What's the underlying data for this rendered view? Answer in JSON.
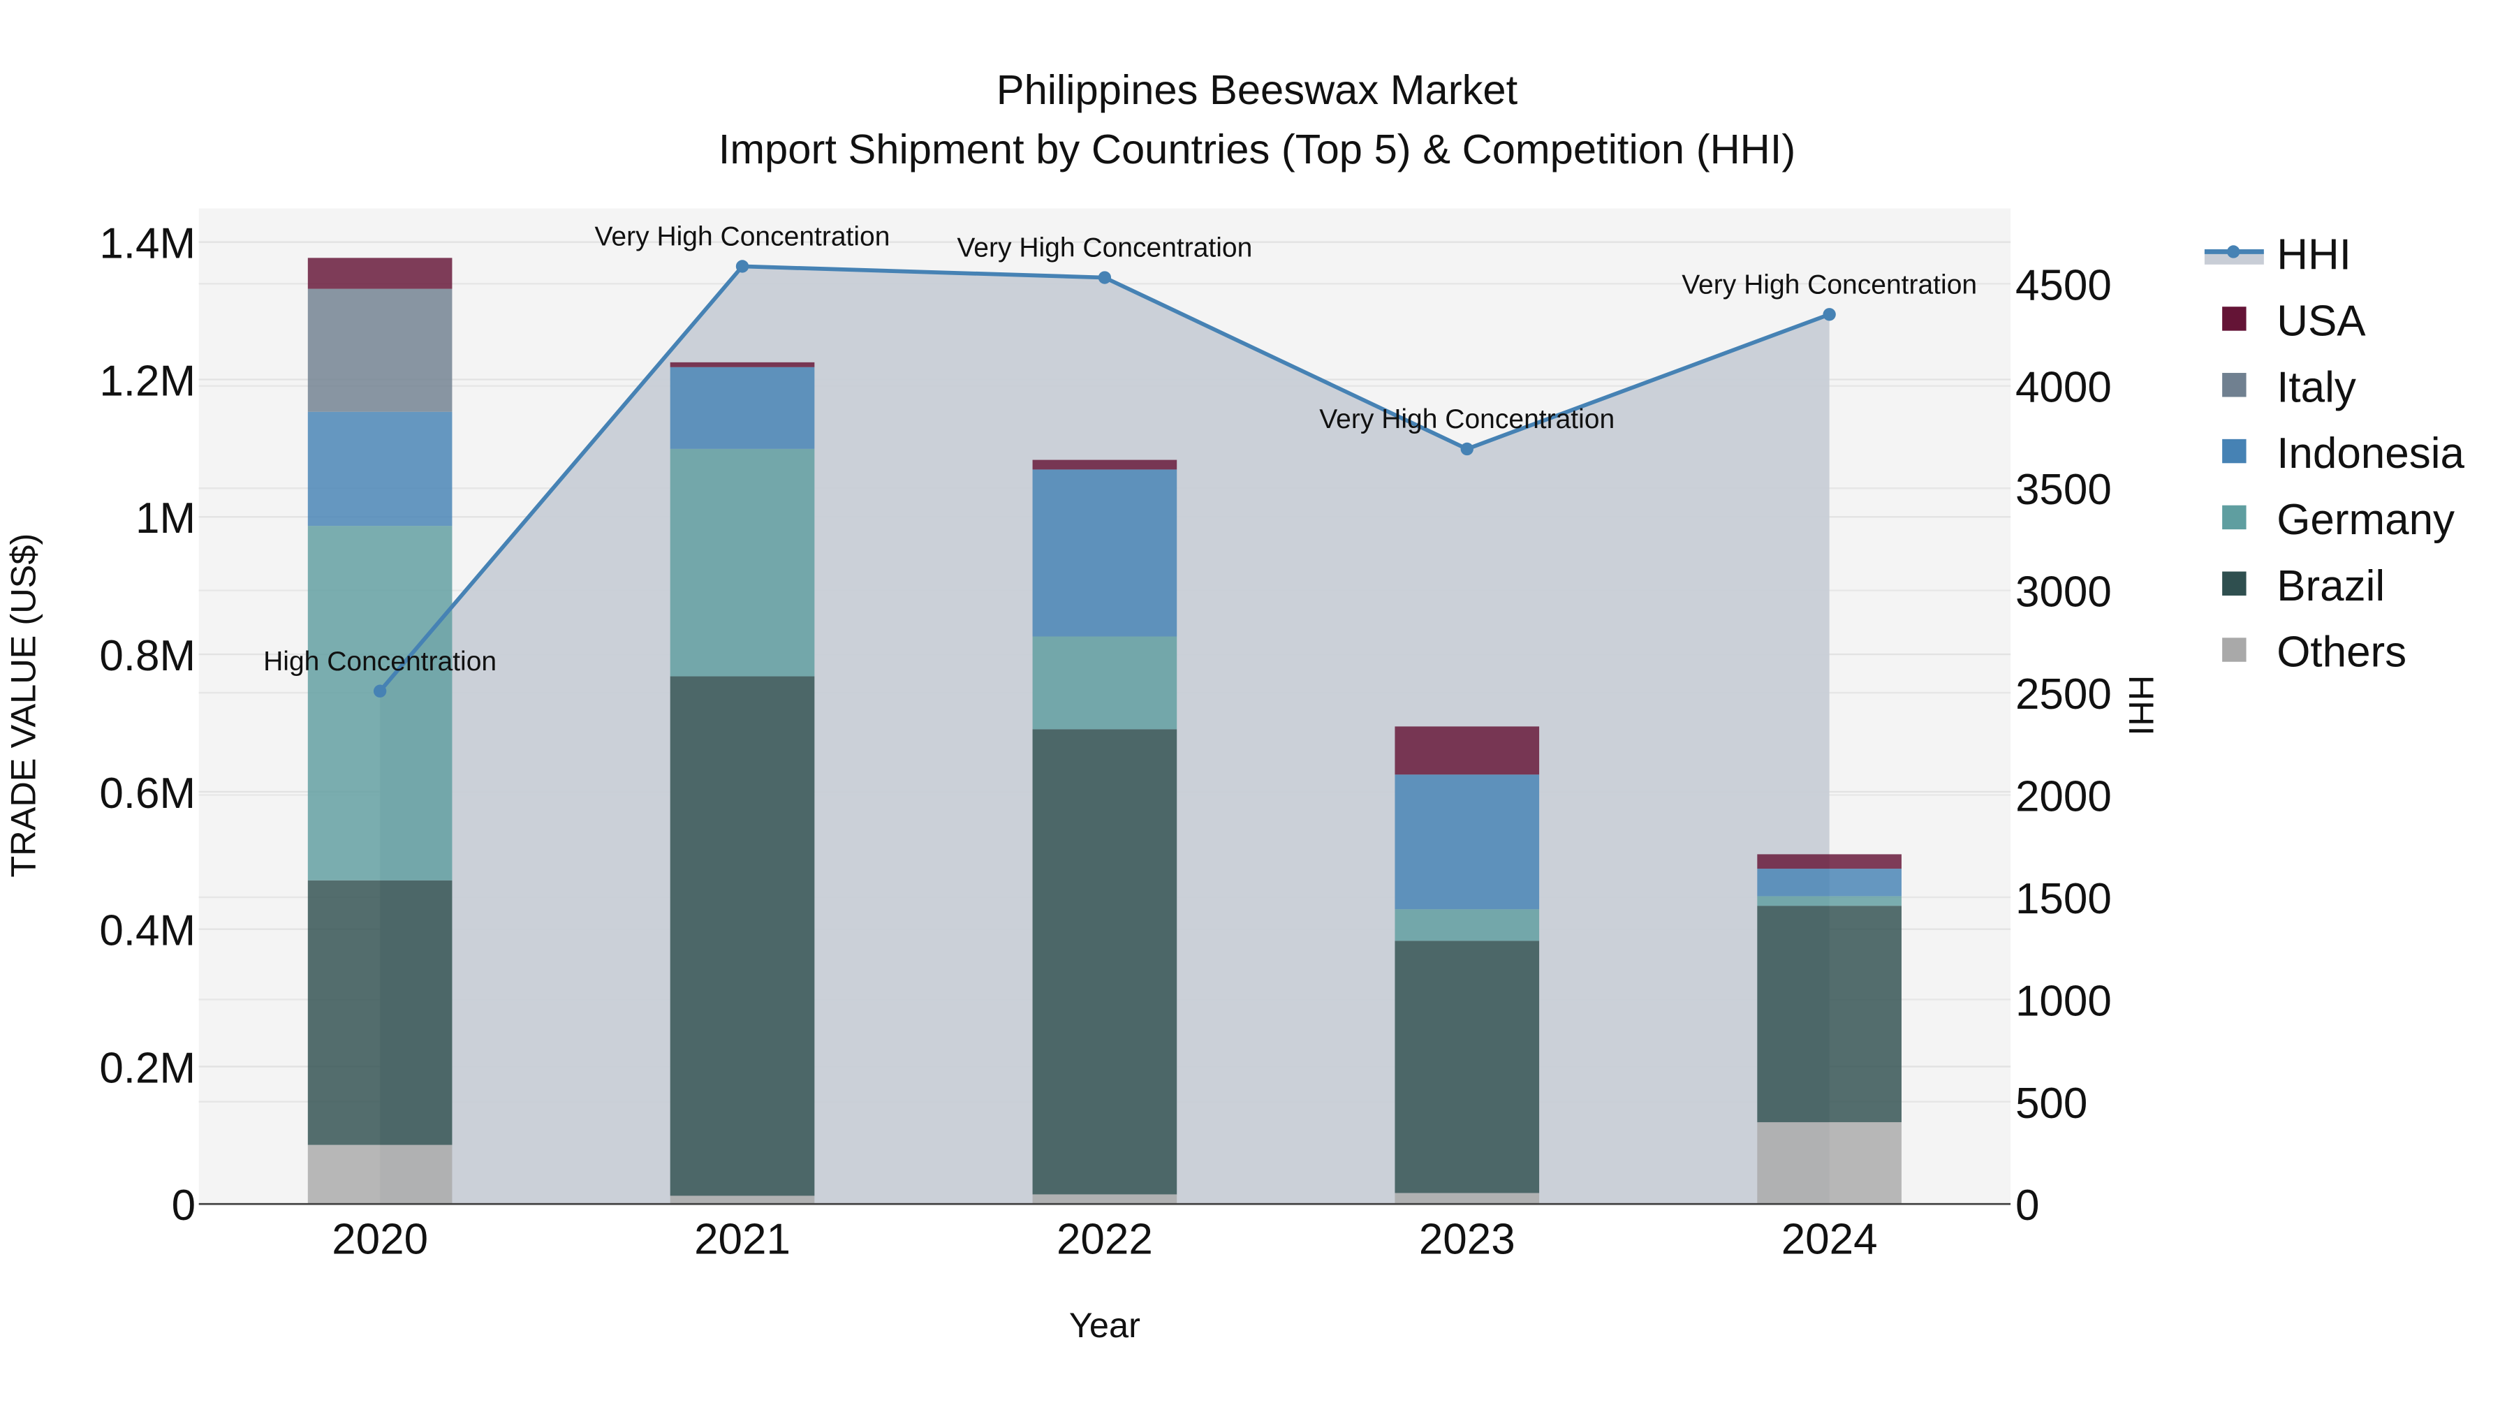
{
  "title_line1": "Philippines Beeswax Market",
  "title_line2": "Import Shipment by Countries (Top 5) & Competition (HHI)",
  "colors": {
    "USA": "#641436",
    "Italy": "#708090",
    "Indonesia": "#4682b4",
    "Germany": "#5f9ea0",
    "Brazil": "#2f4f4f",
    "Others": "#a9a9a9",
    "HHI_line": "#4682b4",
    "HHI_fill": "#c8cdd6",
    "plot_bg": "#f4f4f4"
  },
  "chart_data": {
    "type": "bar",
    "stacked": true,
    "title": "Philippines Beeswax Market — Import Shipment by Countries (Top 5) & Competition (HHI)",
    "xlabel": "Year",
    "ylabel": "TRADE VALUE (US$)",
    "y2label": "HHI",
    "categories": [
      "2020",
      "2021",
      "2022",
      "2023",
      "2024"
    ],
    "ylim": [
      0,
      1450000
    ],
    "y2lim": [
      0,
      4870
    ],
    "yticks": [
      "0",
      "0.2M",
      "0.4M",
      "0.6M",
      "0.8M",
      "1M",
      "1.2M",
      "1.4M"
    ],
    "y2ticks": [
      "0",
      "500",
      "1000",
      "1500",
      "2000",
      "2500",
      "3000",
      "3500",
      "4000",
      "4500"
    ],
    "series": [
      {
        "name": "Others",
        "values": [
          86000,
          12000,
          14000,
          16000,
          119000
        ]
      },
      {
        "name": "Brazil",
        "values": [
          385000,
          756000,
          677000,
          367000,
          315000
        ]
      },
      {
        "name": "Germany",
        "values": [
          516000,
          331000,
          135000,
          46000,
          14000
        ]
      },
      {
        "name": "Indonesia",
        "values": [
          166000,
          119000,
          243000,
          196000,
          40000
        ]
      },
      {
        "name": "Italy",
        "values": [
          179000,
          0,
          0,
          0,
          0
        ]
      },
      {
        "name": "USA",
        "values": [
          45000,
          7000,
          14000,
          70000,
          21000
        ]
      }
    ],
    "line_series": {
      "name": "HHI",
      "axis": "y2",
      "type": "area-line",
      "values": [
        2508,
        4585,
        4530,
        3692,
        4350
      ],
      "annotations": [
        "High Concentration",
        "Very High Concentration",
        "Very High Concentration",
        "Very High Concentration",
        "Very High Concentration"
      ]
    },
    "legend": [
      "HHI",
      "USA",
      "Italy",
      "Indonesia",
      "Germany",
      "Brazil",
      "Others"
    ],
    "legend_position": "right",
    "grid": true
  },
  "legend": {
    "items": [
      {
        "label": "HHI"
      },
      {
        "label": "USA"
      },
      {
        "label": "Italy"
      },
      {
        "label": "Indonesia"
      },
      {
        "label": "Germany"
      },
      {
        "label": "Brazil"
      },
      {
        "label": "Others"
      }
    ]
  }
}
